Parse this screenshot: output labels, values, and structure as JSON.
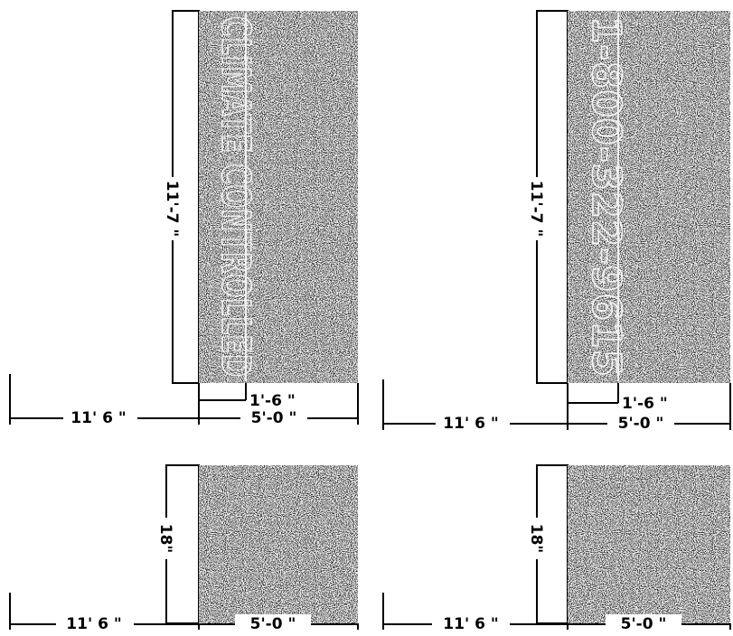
{
  "panels": [
    {
      "side_text": "CLIMATE CONTROLLED",
      "height_dim": "11'-7 \"",
      "offset_dim": "1'-6 \"",
      "width_dim": "5'-0 \"",
      "setback_dim": "11' 6 \""
    },
    {
      "side_text": "1-800-322-9615",
      "height_dim": "11'-7 \"",
      "offset_dim": "1'-6 \"",
      "width_dim": "5'-0 \"",
      "setback_dim": "11' 6 \""
    },
    {
      "height_dim": "18\"",
      "width_dim": "5'-0 \"",
      "setback_dim": "11' 6 \""
    },
    {
      "height_dim": "18\"",
      "width_dim": "5'-0 \"",
      "setback_dim": "11' 6 \""
    }
  ],
  "colors": {
    "ink": "#000000",
    "granite": "#3a3a3a",
    "speckle": "#e8e8e8",
    "paper": "#ffffff"
  }
}
